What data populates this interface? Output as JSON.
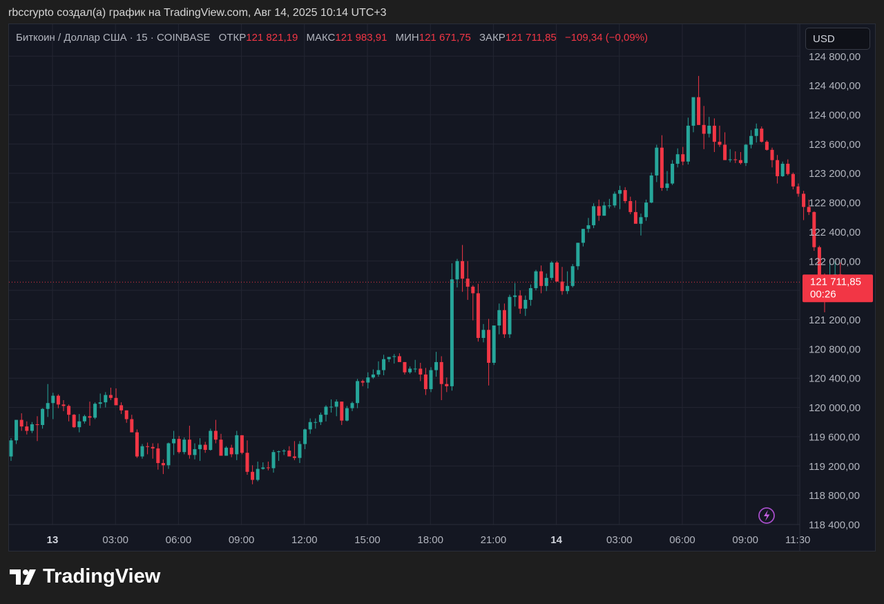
{
  "header": {
    "text": "rbccrypto создал(а) график на TradingView.com, Авг 14, 2025 10:14 UTC+3"
  },
  "legend": {
    "symbol": "Биткоин / Доллар США · 15 · COINBASE",
    "open_label": "ОТКР",
    "open_value": "121 821,19",
    "high_label": "МАКС",
    "high_value": "121 983,91",
    "low_label": "МИН",
    "low_value": "121 671,75",
    "close_label": "ЗАКР",
    "close_value": "121 711,85",
    "change": "−109,34 (−0,09%)"
  },
  "currency_button": "USD",
  "price_tag": {
    "price": "121 711,85",
    "countdown": "00:26"
  },
  "brand": {
    "name": "TradingView"
  },
  "colors": {
    "up": "#26a69a",
    "down": "#f23645",
    "background": "#141722",
    "grid": "#232632",
    "axis_text": "#b2b5be"
  },
  "icons": {
    "lightning": "lightning-icon",
    "logo": "tradingview-logo-icon"
  },
  "chart_data": {
    "type": "candlestick",
    "title": "Биткоин / Доллар США · 15 · COINBASE",
    "interval": "15",
    "grid": true,
    "y_axis_side": "right",
    "ylim": [
      118400,
      124800
    ],
    "y_ticks": [
      "124 800,00",
      "124 400,00",
      "124 000,00",
      "123 600,00",
      "123 200,00",
      "122 800,00",
      "122 400,00",
      "122 000,00",
      "121 600,00",
      "121 200,00",
      "120 800,00",
      "120 400,00",
      "120 000,00",
      "119 600,00",
      "119 200,00",
      "118 800,00",
      "118 400,00"
    ],
    "y_tick_values": [
      124800,
      124400,
      124000,
      123600,
      123200,
      122800,
      122400,
      122000,
      121600,
      121200,
      120800,
      120400,
      120000,
      119600,
      119200,
      118800,
      118400
    ],
    "x_labels": [
      {
        "label": "13",
        "bold": true,
        "hours": 0
      },
      {
        "label": "03:00",
        "bold": false,
        "hours": 3
      },
      {
        "label": "06:00",
        "bold": false,
        "hours": 6
      },
      {
        "label": "09:00",
        "bold": false,
        "hours": 9
      },
      {
        "label": "12:00",
        "bold": false,
        "hours": 12
      },
      {
        "label": "15:00",
        "bold": false,
        "hours": 15
      },
      {
        "label": "18:00",
        "bold": false,
        "hours": 18
      },
      {
        "label": "21:00",
        "bold": false,
        "hours": 21
      },
      {
        "label": "14",
        "bold": true,
        "hours": 24
      },
      {
        "label": "03:00",
        "bold": false,
        "hours": 27
      },
      {
        "label": "06:00",
        "bold": false,
        "hours": 30
      },
      {
        "label": "09:00",
        "bold": false,
        "hours": 33
      },
      {
        "label": "11:30",
        "bold": false,
        "hours": 35.5
      }
    ],
    "last_price": 121711.85,
    "candles": [
      [
        119330,
        119580,
        119270,
        119550
      ],
      [
        119550,
        119830,
        119500,
        119830
      ],
      [
        119830,
        119920,
        119680,
        119740
      ],
      [
        119740,
        119810,
        119630,
        119680
      ],
      [
        119680,
        119800,
        119650,
        119770
      ],
      [
        119770,
        119880,
        119540,
        119760
      ],
      [
        119760,
        119990,
        119710,
        119980
      ],
      [
        119980,
        120320,
        119870,
        120060
      ],
      [
        120060,
        120200,
        119840,
        120160
      ],
      [
        120160,
        120180,
        119990,
        120040
      ],
      [
        120040,
        120100,
        119950,
        120020
      ],
      [
        120020,
        120040,
        119810,
        119900
      ],
      [
        119900,
        119910,
        119720,
        119730
      ],
      [
        119730,
        119910,
        119660,
        119810
      ],
      [
        119810,
        119900,
        119780,
        119880
      ],
      [
        119880,
        120080,
        119750,
        119860
      ],
      [
        119860,
        120070,
        119840,
        120050
      ],
      [
        120050,
        120190,
        119990,
        120070
      ],
      [
        120070,
        120210,
        120000,
        120170
      ],
      [
        120170,
        120270,
        120100,
        120130
      ],
      [
        120130,
        120260,
        120040,
        120030
      ],
      [
        120030,
        120070,
        119910,
        119960
      ],
      [
        119960,
        119960,
        119790,
        119840
      ],
      [
        119840,
        119900,
        119660,
        119660
      ],
      [
        119660,
        119700,
        119310,
        119330
      ],
      [
        119330,
        119500,
        119300,
        119470
      ],
      [
        119470,
        119520,
        119360,
        119460
      ],
      [
        119460,
        119510,
        119300,
        119440
      ],
      [
        119440,
        119510,
        119150,
        119240
      ],
      [
        119240,
        119290,
        119090,
        119210
      ],
      [
        119210,
        119520,
        119160,
        119510
      ],
      [
        119510,
        119680,
        119350,
        119570
      ],
      [
        119570,
        119610,
        119370,
        119390
      ],
      [
        119390,
        119590,
        119360,
        119560
      ],
      [
        119560,
        119750,
        119300,
        119350
      ],
      [
        119350,
        119510,
        119290,
        119430
      ],
      [
        119430,
        119580,
        119270,
        119490
      ],
      [
        119490,
        119530,
        119380,
        119420
      ],
      [
        119420,
        119710,
        119410,
        119680
      ],
      [
        119680,
        119830,
        119510,
        119560
      ],
      [
        119560,
        119640,
        119370,
        119340
      ],
      [
        119340,
        119470,
        119340,
        119450
      ],
      [
        119450,
        119490,
        119320,
        119360
      ],
      [
        119360,
        119680,
        119280,
        119620
      ],
      [
        119620,
        119620,
        119360,
        119380
      ],
      [
        119380,
        119550,
        119080,
        119120
      ],
      [
        119120,
        119210,
        118950,
        119010
      ],
      [
        119010,
        119260,
        118990,
        119160
      ],
      [
        119160,
        119250,
        119150,
        119180
      ],
      [
        119180,
        119260,
        119140,
        119170
      ],
      [
        119170,
        119420,
        119110,
        119390
      ],
      [
        119390,
        119410,
        119270,
        119400
      ],
      [
        119400,
        119430,
        119350,
        119410
      ],
      [
        119410,
        119470,
        119330,
        119330
      ],
      [
        119330,
        119540,
        119280,
        119310
      ],
      [
        119310,
        119540,
        119240,
        119500
      ],
      [
        119500,
        119710,
        119430,
        119700
      ],
      [
        119700,
        119850,
        119640,
        119800
      ],
      [
        119800,
        119850,
        119710,
        119800
      ],
      [
        119800,
        119930,
        119760,
        119900
      ],
      [
        119900,
        120030,
        119810,
        120010
      ],
      [
        120010,
        120110,
        119930,
        120010
      ],
      [
        120010,
        120110,
        119880,
        120080
      ],
      [
        120080,
        120080,
        119760,
        119820
      ],
      [
        119820,
        120020,
        119810,
        119990
      ],
      [
        119990,
        120080,
        119950,
        120060
      ],
      [
        120060,
        120390,
        119990,
        120360
      ],
      [
        120360,
        120380,
        120290,
        120340
      ],
      [
        120340,
        120480,
        120260,
        120410
      ],
      [
        120410,
        120520,
        120390,
        120450
      ],
      [
        120450,
        120630,
        120420,
        120510
      ],
      [
        120510,
        120720,
        120440,
        120660
      ],
      [
        120660,
        120690,
        120620,
        120690
      ],
      [
        120690,
        120730,
        120600,
        120700
      ],
      [
        120700,
        120740,
        120630,
        120620
      ],
      [
        120620,
        120620,
        120450,
        120480
      ],
      [
        120480,
        120560,
        120460,
        120530
      ],
      [
        120530,
        120650,
        120480,
        120530
      ],
      [
        120530,
        120610,
        120360,
        120450
      ],
      [
        120450,
        120540,
        120170,
        120250
      ],
      [
        120250,
        120550,
        120210,
        120510
      ],
      [
        120510,
        120760,
        120420,
        120620
      ],
      [
        120620,
        120700,
        120100,
        120320
      ],
      [
        120320,
        120410,
        120210,
        120290
      ],
      [
        120290,
        121970,
        120230,
        121750
      ],
      [
        121750,
        122030,
        121640,
        122000
      ],
      [
        122000,
        122220,
        121580,
        121760
      ],
      [
        121760,
        122000,
        121470,
        121650
      ],
      [
        121650,
        121670,
        121190,
        121560
      ],
      [
        121560,
        121690,
        120900,
        120950
      ],
      [
        120950,
        121140,
        120890,
        121060
      ],
      [
        121060,
        121210,
        120300,
        120610
      ],
      [
        120610,
        121060,
        120580,
        121120
      ],
      [
        121120,
        121420,
        121000,
        121330
      ],
      [
        121330,
        121420,
        120950,
        121000
      ],
      [
        121000,
        121540,
        120950,
        121510
      ],
      [
        121510,
        121700,
        121380,
        121530
      ],
      [
        121530,
        121600,
        121280,
        121350
      ],
      [
        121350,
        121530,
        121250,
        121470
      ],
      [
        121470,
        121680,
        121390,
        121630
      ],
      [
        121630,
        121880,
        121600,
        121860
      ],
      [
        121860,
        121940,
        121560,
        121660
      ],
      [
        121660,
        121830,
        121590,
        121770
      ],
      [
        121770,
        122000,
        121740,
        121980
      ],
      [
        121980,
        122000,
        121720,
        121720
      ],
      [
        121720,
        121920,
        121540,
        121590
      ],
      [
        121590,
        121860,
        121550,
        121660
      ],
      [
        121660,
        121960,
        121640,
        121930
      ],
      [
        121930,
        122250,
        121880,
        122250
      ],
      [
        122250,
        122440,
        122200,
        122440
      ],
      [
        122440,
        122590,
        122390,
        122490
      ],
      [
        122490,
        122790,
        122450,
        122750
      ],
      [
        122750,
        122840,
        122550,
        122620
      ],
      [
        122620,
        122810,
        122620,
        122760
      ],
      [
        122760,
        122850,
        122720,
        122760
      ],
      [
        122760,
        122950,
        122730,
        122920
      ],
      [
        122920,
        123030,
        122710,
        122970
      ],
      [
        122970,
        123010,
        122790,
        122820
      ],
      [
        122820,
        122880,
        122640,
        122670
      ],
      [
        122670,
        122830,
        122550,
        122510
      ],
      [
        122510,
        122650,
        122350,
        122600
      ],
      [
        122600,
        122840,
        122550,
        122800
      ],
      [
        122800,
        123210,
        122790,
        123170
      ],
      [
        123170,
        123590,
        123080,
        123550
      ],
      [
        123550,
        123720,
        122960,
        123000
      ],
      [
        123000,
        123230,
        122960,
        123060
      ],
      [
        123060,
        123380,
        123040,
        123330
      ],
      [
        123330,
        123540,
        123280,
        123460
      ],
      [
        123460,
        123560,
        123310,
        123360
      ],
      [
        123360,
        123960,
        123320,
        123850
      ],
      [
        123850,
        124220,
        123760,
        124240
      ],
      [
        124240,
        124530,
        123860,
        123860
      ],
      [
        123860,
        124120,
        123530,
        123740
      ],
      [
        123740,
        123970,
        123690,
        123850
      ],
      [
        123850,
        123950,
        123490,
        123630
      ],
      [
        123630,
        123850,
        123560,
        123590
      ],
      [
        123590,
        123760,
        123390,
        123380
      ],
      [
        123380,
        123530,
        123350,
        123390
      ],
      [
        123390,
        123500,
        123340,
        123380
      ],
      [
        123380,
        123490,
        123320,
        123340
      ],
      [
        123340,
        123600,
        123300,
        123590
      ],
      [
        123590,
        123790,
        123540,
        123710
      ],
      [
        123710,
        123880,
        123620,
        123810
      ],
      [
        123810,
        123840,
        123620,
        123630
      ],
      [
        123630,
        123650,
        123510,
        123520
      ],
      [
        123520,
        123550,
        123280,
        123380
      ],
      [
        123380,
        123450,
        123060,
        123160
      ],
      [
        123160,
        123360,
        123150,
        123330
      ],
      [
        123330,
        123390,
        123170,
        123190
      ],
      [
        123190,
        123210,
        122980,
        123020
      ],
      [
        123020,
        123060,
        122880,
        122920
      ],
      [
        122920,
        122960,
        122560,
        122740
      ],
      [
        122740,
        122840,
        122630,
        122670
      ],
      [
        122670,
        122680,
        122140,
        122190
      ],
      [
        122190,
        122210,
        121660,
        121800
      ],
      [
        121800,
        121830,
        121300,
        121640
      ],
      [
        121640,
        122000,
        121580,
        121810
      ],
      [
        121810,
        122000,
        121660,
        121820
      ],
      [
        121820,
        121980,
        121670,
        121710
      ]
    ]
  }
}
